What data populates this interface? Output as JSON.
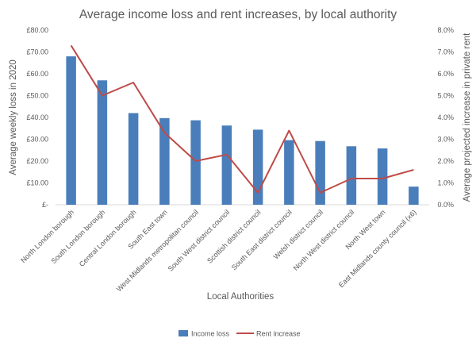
{
  "chart_data": {
    "type": "bar",
    "title": "Average income loss and rent increases, by local authority",
    "xlabel": "Local Authorities",
    "ylabel": "Average weekly loss in 2020",
    "ylabel_right": "Average projected increase in private rent",
    "categories": [
      "North London borough",
      "South London borough",
      "Central London borough",
      "South East town",
      "West Midlands metropolitan council",
      "South West district council",
      "Scottish district council",
      "South East district council",
      "Welsh district council",
      "North West district council",
      "North West town",
      "East Midlands county council (x6)"
    ],
    "ylim": [
      0,
      80
    ],
    "y_ticks": [
      "£-",
      "£10.00",
      "£20.00",
      "£30.00",
      "£40.00",
      "£50.00",
      "£60.00",
      "£70.00",
      "£80.00"
    ],
    "y2lim": [
      0,
      8
    ],
    "y2_ticks": [
      "0.0%",
      "1.0%",
      "2.0%",
      "3.0%",
      "4.0%",
      "5.0%",
      "6.0%",
      "7.0%",
      "8.0%"
    ],
    "series": [
      {
        "name": "Income loss",
        "chart_type": "bar",
        "axis": "left",
        "color": "#4a7ebb",
        "values": [
          68,
          57,
          42,
          39.7,
          38.7,
          36.3,
          34.4,
          29.6,
          29.2,
          26.8,
          25.8,
          8.3
        ]
      },
      {
        "name": "Rent increase",
        "chart_type": "line",
        "axis": "right",
        "color": "#be4b48",
        "values": [
          7.3,
          5.0,
          5.6,
          3.3,
          2.0,
          2.3,
          0.55,
          3.4,
          0.55,
          1.2,
          1.2,
          1.6
        ]
      }
    ],
    "grid": false,
    "legend_position": "bottom"
  }
}
